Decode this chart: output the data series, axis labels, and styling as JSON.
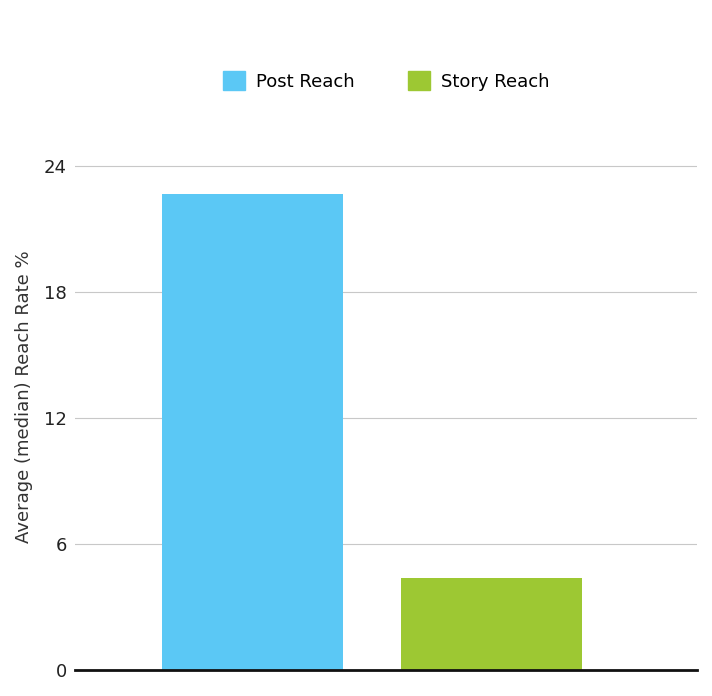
{
  "categories": [
    "Post Reach",
    "Story Reach"
  ],
  "values": [
    22.7,
    4.4
  ],
  "bar_colors": [
    "#5BC8F5",
    "#9DC833"
  ],
  "ylabel": "Average (median) Reach Rate %",
  "ylim": [
    0,
    26
  ],
  "yticks": [
    0,
    6,
    12,
    18,
    24
  ],
  "legend_labels": [
    "Post Reach",
    "Story Reach"
  ],
  "legend_colors": [
    "#5BC8F5",
    "#9DC833"
  ],
  "background_color": "#FFFFFF",
  "grid_color": "#C8C8C8",
  "bar_width": 0.38,
  "bar_positions": [
    0.42,
    0.92
  ],
  "xlim": [
    0.05,
    1.35
  ],
  "ylabel_fontsize": 13,
  "legend_fontsize": 13,
  "tick_fontsize": 13,
  "axis_bottom_color": "#111111"
}
